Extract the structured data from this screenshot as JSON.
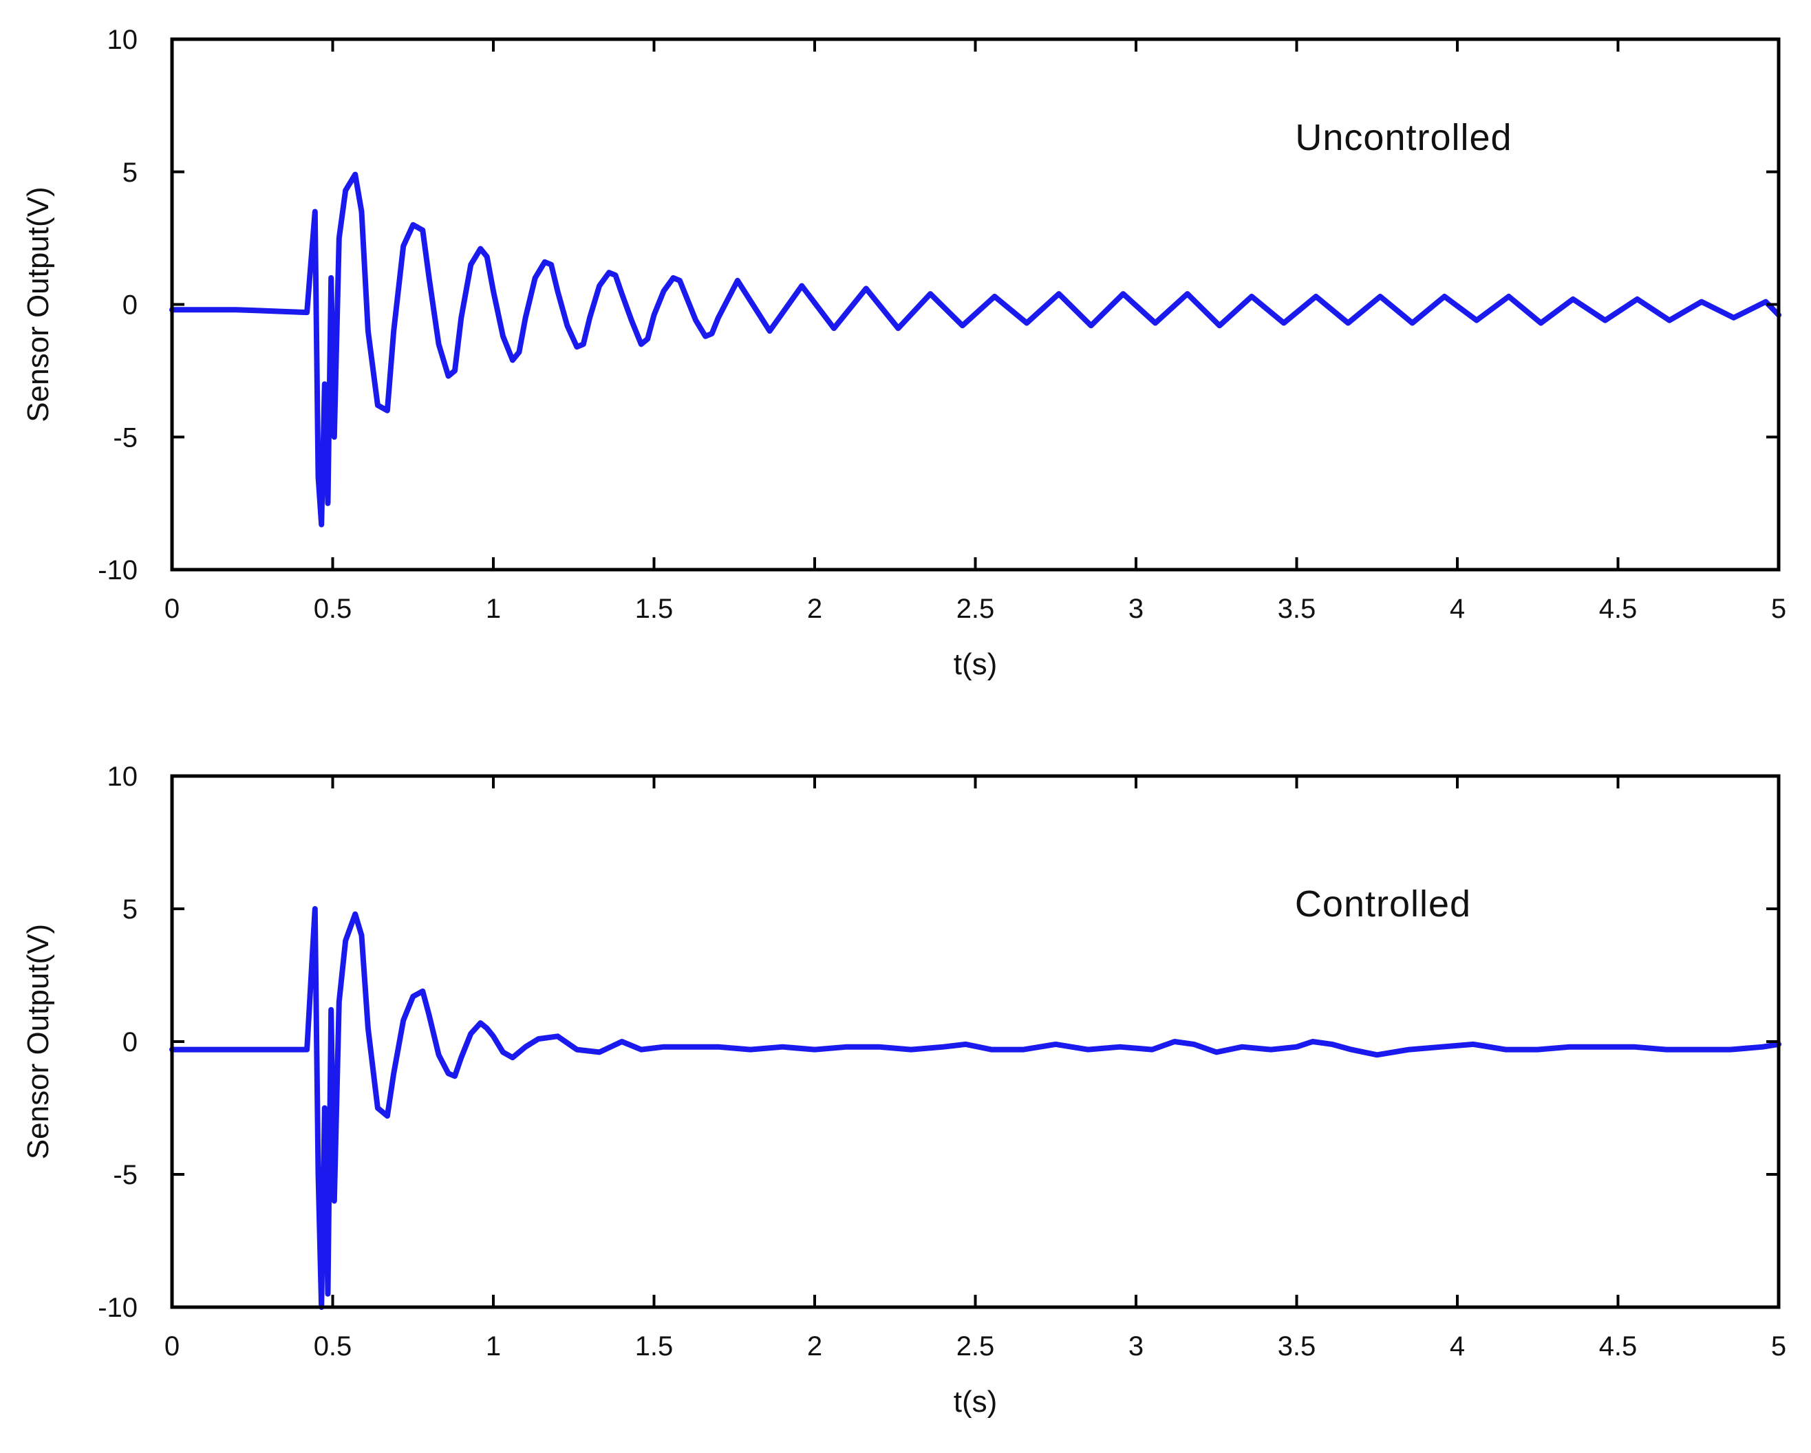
{
  "line_color": "#1a1aee",
  "chart_data": [
    {
      "type": "line",
      "annotation": "Uncontrolled",
      "xlabel": "t(s)",
      "ylabel": "Sensor Output(V)",
      "xlim": [
        0,
        5
      ],
      "ylim": [
        -10,
        10
      ],
      "xticks": [
        "0",
        "0.5",
        "1",
        "1.5",
        "2",
        "2.5",
        "3",
        "3.5",
        "4",
        "4.5",
        "5"
      ],
      "yticks": [
        "10",
        "5",
        "0",
        "-5",
        "-10"
      ],
      "x": [
        0,
        0.2,
        0.42,
        0.445,
        0.455,
        0.465,
        0.475,
        0.485,
        0.495,
        0.505,
        0.52,
        0.54,
        0.57,
        0.59,
        0.61,
        0.64,
        0.67,
        0.69,
        0.72,
        0.75,
        0.78,
        0.8,
        0.83,
        0.86,
        0.88,
        0.9,
        0.93,
        0.96,
        0.98,
        1.0,
        1.03,
        1.06,
        1.08,
        1.1,
        1.13,
        1.16,
        1.18,
        1.2,
        1.23,
        1.26,
        1.28,
        1.3,
        1.33,
        1.36,
        1.38,
        1.4,
        1.43,
        1.46,
        1.48,
        1.5,
        1.53,
        1.56,
        1.58,
        1.6,
        1.63,
        1.66,
        1.68,
        1.7,
        1.76,
        1.86,
        1.96,
        2.06,
        2.16,
        2.26,
        2.36,
        2.46,
        2.56,
        2.66,
        2.76,
        2.86,
        2.96,
        3.06,
        3.16,
        3.26,
        3.36,
        3.46,
        3.56,
        3.66,
        3.76,
        3.86,
        3.96,
        4.06,
        4.16,
        4.26,
        4.36,
        4.46,
        4.56,
        4.66,
        4.76,
        4.86,
        4.96,
        5.0
      ],
      "y": [
        -0.2,
        -0.2,
        -0.3,
        3.5,
        -6.5,
        -8.3,
        -3.0,
        -7.5,
        1.0,
        -5.0,
        2.5,
        4.3,
        4.9,
        3.5,
        -1.0,
        -3.8,
        -4.0,
        -1.0,
        2.2,
        3.0,
        2.8,
        1.0,
        -1.5,
        -2.7,
        -2.5,
        -0.5,
        1.5,
        2.1,
        1.8,
        0.5,
        -1.2,
        -2.1,
        -1.8,
        -0.5,
        1.0,
        1.6,
        1.5,
        0.5,
        -0.8,
        -1.6,
        -1.5,
        -0.5,
        0.7,
        1.2,
        1.1,
        0.4,
        -0.6,
        -1.5,
        -1.3,
        -0.4,
        0.5,
        1.0,
        0.9,
        0.3,
        -0.6,
        -1.2,
        -1.1,
        -0.5,
        0.9,
        -1.0,
        0.7,
        -0.9,
        0.6,
        -0.9,
        0.4,
        -0.8,
        0.3,
        -0.7,
        0.4,
        -0.8,
        0.4,
        -0.7,
        0.4,
        -0.8,
        0.3,
        -0.7,
        0.3,
        -0.7,
        0.3,
        -0.7,
        0.3,
        -0.6,
        0.3,
        -0.7,
        0.2,
        -0.6,
        0.2,
        -0.6,
        0.1,
        -0.5,
        0.1,
        -0.4
      ]
    },
    {
      "type": "line",
      "annotation": "Controlled",
      "xlabel": "t(s)",
      "ylabel": "Sensor Output(V)",
      "xlim": [
        0,
        5
      ],
      "ylim": [
        -10,
        10
      ],
      "xticks": [
        "0",
        "0.5",
        "1",
        "1.5",
        "2",
        "2.5",
        "3",
        "3.5",
        "4",
        "4.5",
        "5"
      ],
      "yticks": [
        "10",
        "5",
        "0",
        "-5",
        "-10"
      ],
      "x": [
        0,
        0.2,
        0.42,
        0.445,
        0.455,
        0.465,
        0.475,
        0.485,
        0.495,
        0.505,
        0.52,
        0.54,
        0.57,
        0.59,
        0.61,
        0.64,
        0.67,
        0.69,
        0.72,
        0.75,
        0.78,
        0.8,
        0.83,
        0.86,
        0.88,
        0.9,
        0.93,
        0.96,
        0.98,
        1.0,
        1.03,
        1.06,
        1.1,
        1.14,
        1.2,
        1.26,
        1.33,
        1.4,
        1.46,
        1.53,
        1.6,
        1.7,
        1.8,
        1.9,
        2.0,
        2.1,
        2.2,
        2.3,
        2.4,
        2.47,
        2.55,
        2.65,
        2.75,
        2.85,
        2.95,
        3.05,
        3.12,
        3.18,
        3.25,
        3.33,
        3.42,
        3.5,
        3.55,
        3.61,
        3.67,
        3.75,
        3.85,
        3.95,
        4.05,
        4.15,
        4.25,
        4.35,
        4.45,
        4.55,
        4.65,
        4.75,
        4.85,
        4.95,
        5.0
      ],
      "y": [
        -0.3,
        -0.3,
        -0.3,
        5.0,
        -5.0,
        -10.0,
        -2.5,
        -9.5,
        1.2,
        -6.0,
        1.5,
        3.8,
        4.8,
        4.0,
        0.5,
        -2.5,
        -2.8,
        -1.2,
        0.8,
        1.7,
        1.9,
        1.0,
        -0.5,
        -1.2,
        -1.3,
        -0.6,
        0.3,
        0.7,
        0.5,
        0.2,
        -0.4,
        -0.6,
        -0.2,
        0.1,
        0.2,
        -0.3,
        -0.4,
        0.0,
        -0.3,
        -0.2,
        -0.2,
        -0.2,
        -0.3,
        -0.2,
        -0.3,
        -0.2,
        -0.2,
        -0.3,
        -0.2,
        -0.1,
        -0.3,
        -0.3,
        -0.1,
        -0.3,
        -0.2,
        -0.3,
        0.0,
        -0.1,
        -0.4,
        -0.2,
        -0.3,
        -0.2,
        0.0,
        -0.1,
        -0.3,
        -0.5,
        -0.3,
        -0.2,
        -0.1,
        -0.3,
        -0.3,
        -0.2,
        -0.2,
        -0.2,
        -0.3,
        -0.3,
        -0.3,
        -0.2,
        -0.1
      ]
    }
  ]
}
